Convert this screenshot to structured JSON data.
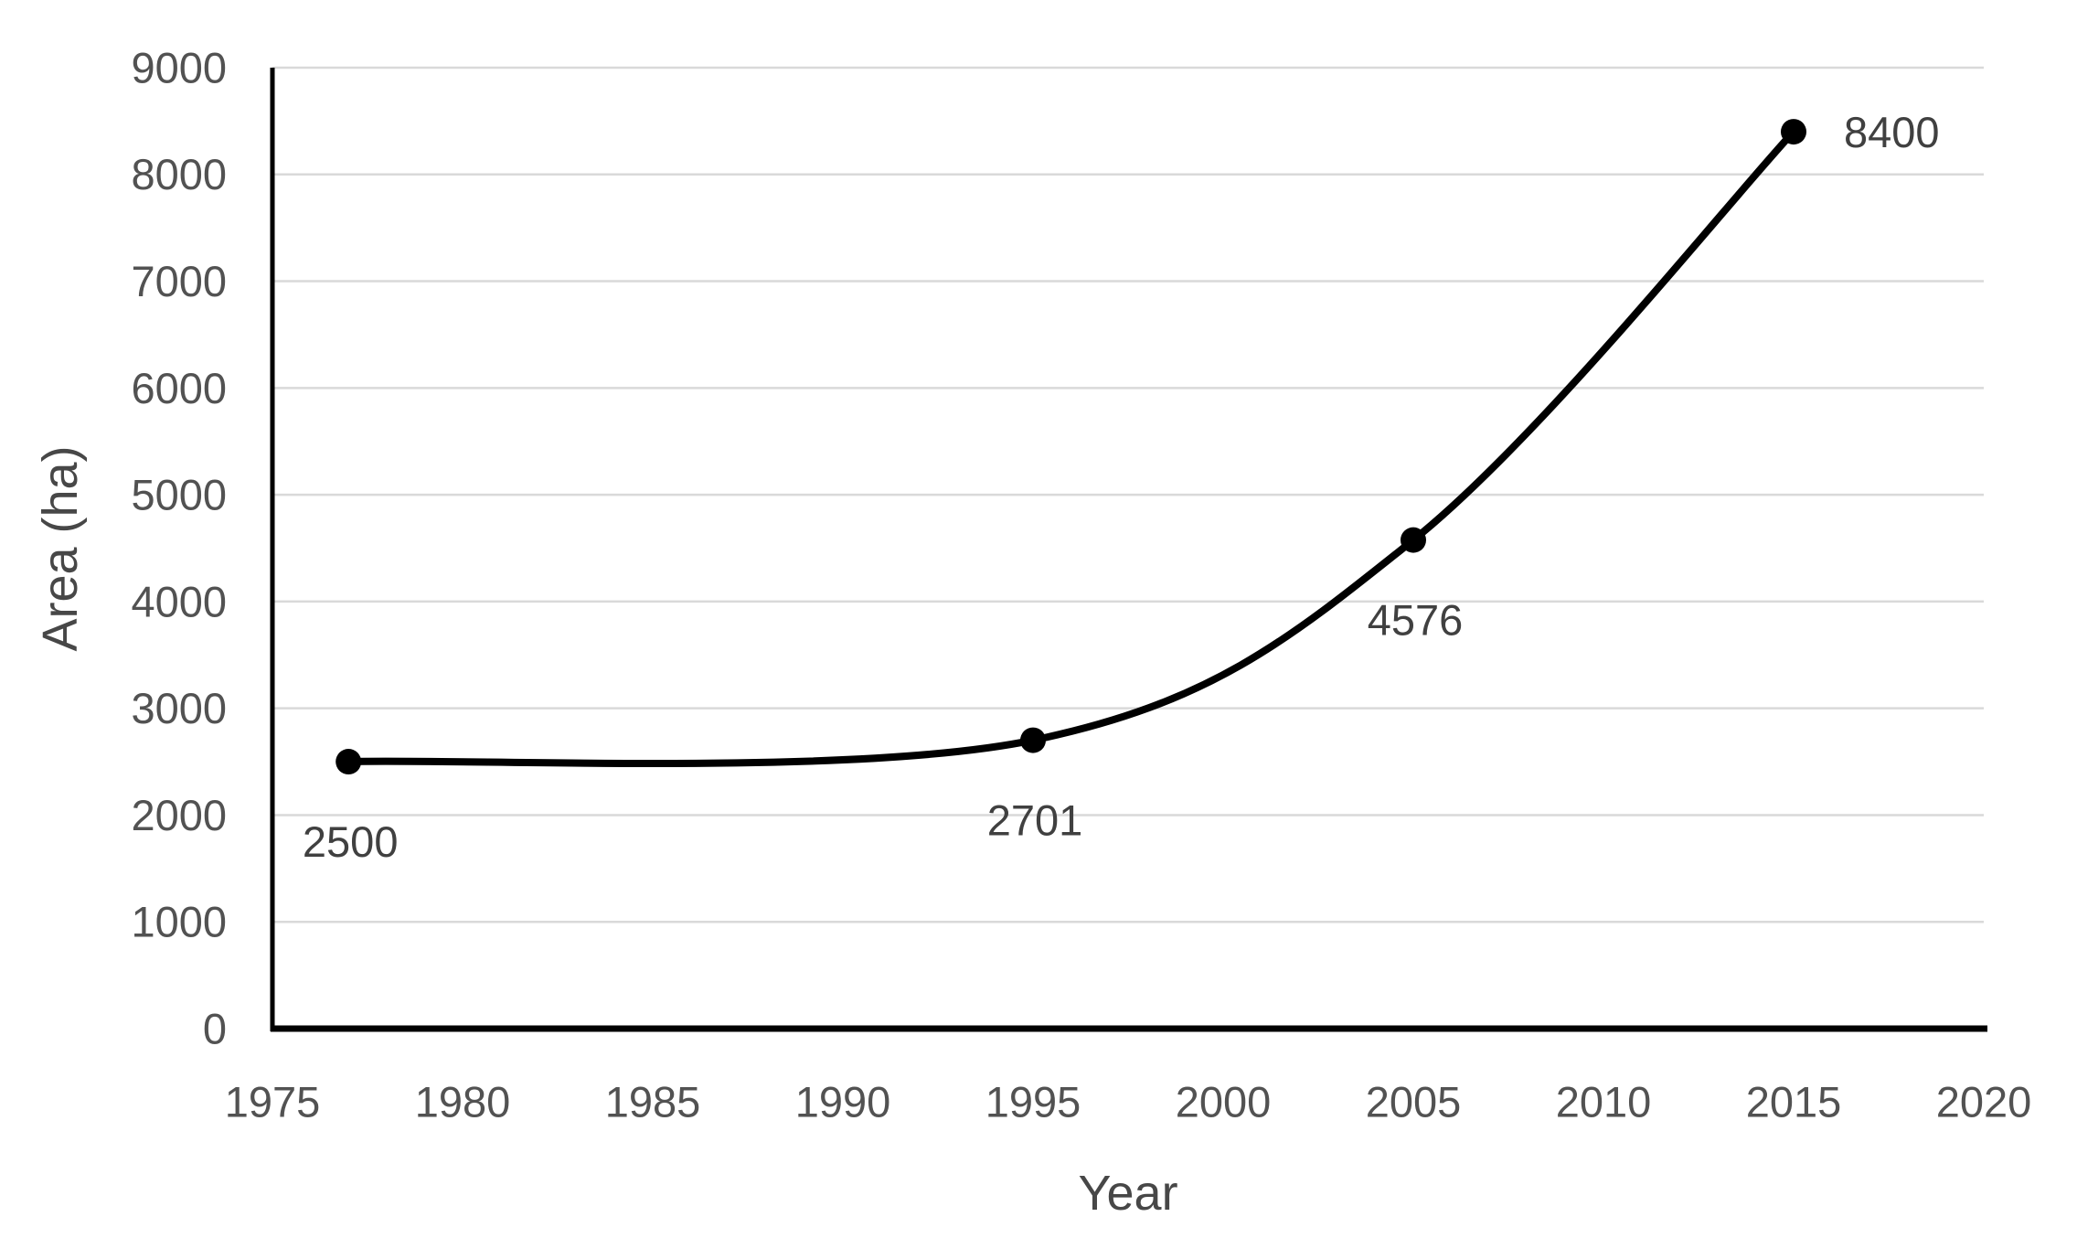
{
  "chart_data": {
    "type": "line",
    "title": "",
    "xlabel": "Year",
    "ylabel": "Area (ha)",
    "x": [
      1977,
      1995,
      2005,
      2015
    ],
    "series": [
      {
        "name": "Area (ha)",
        "values": [
          2500,
          2701,
          4576,
          8400
        ]
      }
    ],
    "point_labels": [
      "2500",
      "2701",
      "4576",
      "8400"
    ],
    "point_label_positions": [
      "below",
      "below",
      "below",
      "right"
    ],
    "xlim": [
      1975,
      2020
    ],
    "ylim": [
      0,
      9000
    ],
    "x_ticks": [
      1975,
      1980,
      1985,
      1990,
      1995,
      2000,
      2005,
      2010,
      2015,
      2020
    ],
    "y_ticks": [
      0,
      1000,
      2000,
      3000,
      4000,
      5000,
      6000,
      7000,
      8000,
      9000
    ],
    "grid": "horizontal",
    "legend": "none",
    "line_smooth": true,
    "marker": "circle",
    "colors": {
      "line": "#000000",
      "marker": "#000000",
      "axis": "#000000",
      "gridline": "#d9d9d9",
      "tick_label": "#525252",
      "data_label": "#404040",
      "axis_title": "#474747",
      "background": "#ffffff"
    }
  }
}
